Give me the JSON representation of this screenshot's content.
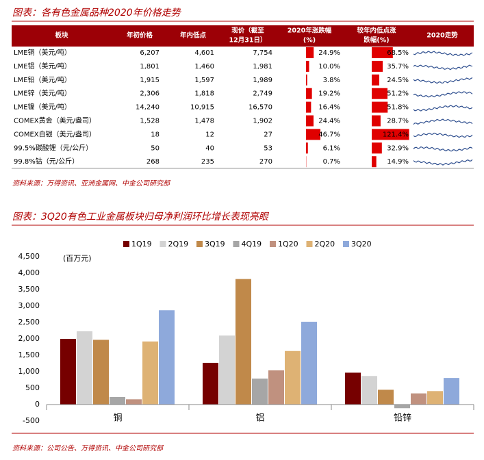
{
  "table": {
    "title": "图表：各有色金属品种2020年价格走势",
    "headers": [
      [
        "板块"
      ],
      [
        "年初价格"
      ],
      [
        "年内低点"
      ],
      [
        "现价（截至",
        "12月31日）"
      ],
      [
        "2020年涨跌幅",
        "(%)"
      ],
      [
        "较年内低点涨",
        "跌幅(%)"
      ],
      [
        "2020走势"
      ]
    ],
    "rows": [
      {
        "name": "LME铜（美元/吨）",
        "start": "6,207",
        "low": "4,601",
        "now": "7,754",
        "ytd": {
          "value": 24.9,
          "label": "24.9%"
        },
        "from_low": {
          "value": 68.5,
          "label": "68.5%"
        }
      },
      {
        "name": "LME铝（美元/吨）",
        "start": "1,801",
        "low": "1,460",
        "now": "1,981",
        "ytd": {
          "value": 10.0,
          "label": "10.0%"
        },
        "from_low": {
          "value": 35.7,
          "label": "35.7%"
        }
      },
      {
        "name": "LME铅（美元/吨）",
        "start": "1,915",
        "low": "1,597",
        "now": "1,989",
        "ytd": {
          "value": 3.8,
          "label": "3.8%"
        },
        "from_low": {
          "value": 24.5,
          "label": "24.5%"
        }
      },
      {
        "name": "LME锌（美元/吨）",
        "start": "2,306",
        "low": "1,818",
        "now": "2,749",
        "ytd": {
          "value": 19.2,
          "label": "19.2%"
        },
        "from_low": {
          "value": 51.2,
          "label": "51.2%"
        }
      },
      {
        "name": "LME镍（美元/吨）",
        "start": "14,240",
        "low": "10,915",
        "now": "16,570",
        "ytd": {
          "value": 16.4,
          "label": "16.4%"
        },
        "from_low": {
          "value": 51.8,
          "label": "51.8%"
        }
      },
      {
        "name": "COMEX黄金（美元/盎司）",
        "start": "1,528",
        "low": "1,478",
        "now": "1,902",
        "ytd": {
          "value": 24.4,
          "label": "24.4%"
        },
        "from_low": {
          "value": 28.7,
          "label": "28.7%"
        }
      },
      {
        "name": "COMEX白银（美元/盎司）",
        "start": "18",
        "low": "12",
        "now": "27",
        "ytd": {
          "value": 46.7,
          "label": "46.7%"
        },
        "from_low": {
          "value": 121.4,
          "label": "121.4%"
        }
      },
      {
        "name": "99.5%碳酸锂（元/公斤）",
        "start": "50",
        "low": "40",
        "now": "53",
        "ytd": {
          "value": 6.1,
          "label": "6.1%"
        },
        "from_low": {
          "value": 32.9,
          "label": "32.9%"
        }
      },
      {
        "name": "99.8%钴（元/公斤）",
        "start": "268",
        "low": "235",
        "now": "270",
        "ytd": {
          "value": 0.7,
          "label": "0.7%"
        },
        "from_low": {
          "value": 14.9,
          "label": "14.9%"
        }
      }
    ],
    "bar_color": "#e00000",
    "source": "资料来源：万得资讯、亚洲金属网、中金公司研究部"
  },
  "chart_data": {
    "type": "bar",
    "title": "图表：3Q20有色工业金属板块归母净利润环比增长表现亮眼",
    "unit_label": "(百万元)",
    "categories": [
      "铜",
      "铝",
      "铅锌"
    ],
    "series": [
      {
        "name": "1Q19",
        "color": "#760000",
        "values": [
          2000,
          1270,
          970
        ]
      },
      {
        "name": "2Q19",
        "color": "#d3d3d3",
        "values": [
          2230,
          2100,
          870
        ]
      },
      {
        "name": "3Q19",
        "color": "#c0894a",
        "values": [
          1970,
          3820,
          450
        ]
      },
      {
        "name": "4Q19",
        "color": "#a6a6a6",
        "values": [
          230,
          790,
          -110
        ]
      },
      {
        "name": "1Q20",
        "color": "#c0917f",
        "values": [
          160,
          1040,
          340
        ]
      },
      {
        "name": "2Q20",
        "color": "#deb274",
        "values": [
          1920,
          1630,
          410
        ]
      },
      {
        "name": "3Q20",
        "color": "#8ea9db",
        "values": [
          2870,
          2520,
          810
        ]
      }
    ],
    "ylim": [
      -500,
      4500
    ],
    "yticks": [
      -500,
      0,
      500,
      {
        "value": 1000,
        "label": "1,000"
      },
      {
        "value": 1500,
        "label": "1,500"
      },
      {
        "value": 2000,
        "label": "2,000"
      },
      {
        "value": 2500,
        "label": "2,500"
      },
      {
        "value": 3000,
        "label": "3,000"
      },
      {
        "value": 3500,
        "label": "3,500"
      },
      {
        "value": 4000,
        "label": "4,000"
      },
      {
        "value": 4500,
        "label": "4,500"
      }
    ],
    "grid": false,
    "source": "资料来源：公司公告、万得资讯、中金公司研究部"
  }
}
